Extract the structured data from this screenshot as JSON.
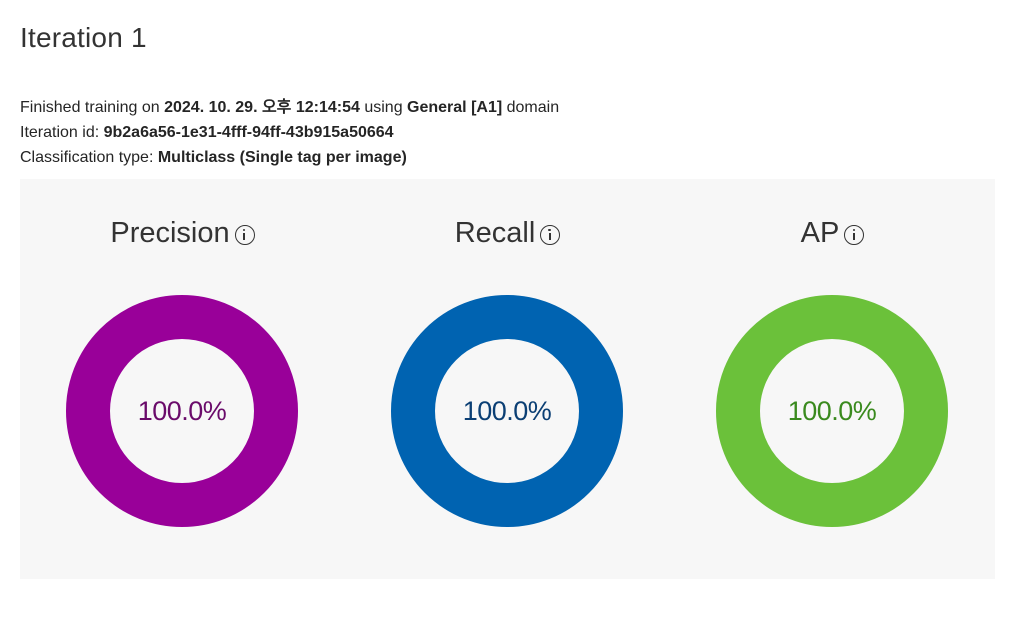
{
  "page": {
    "title": "Iteration 1"
  },
  "details": {
    "finished_prefix": "Finished training on ",
    "finished_date": "2024. 10. 29. 오후 12:14:54",
    "finished_middle": " using ",
    "domain_name": "General [A1]",
    "finished_suffix": " domain",
    "iteration_id_label": "Iteration id: ",
    "iteration_id": "9b2a6a56-1e31-4fff-94ff-43b915a50664",
    "classification_label": "Classification type: ",
    "classification_type": "Multiclass (Single tag per image)"
  },
  "metrics": [
    {
      "label": "Precision",
      "value_text": "100.0%",
      "value": 100.0,
      "icon": "info-icon",
      "ring_color": "#990099",
      "text_color": "#6a0b6a"
    },
    {
      "label": "Recall",
      "value_text": "100.0%",
      "value": 100.0,
      "icon": "info-icon",
      "ring_color": "#0063b1",
      "text_color": "#0b3f74"
    },
    {
      "label": "AP",
      "value_text": "100.0%",
      "value": 100.0,
      "icon": "info-icon",
      "ring_color": "#6bc13a",
      "text_color": "#3a8a1e"
    }
  ]
}
